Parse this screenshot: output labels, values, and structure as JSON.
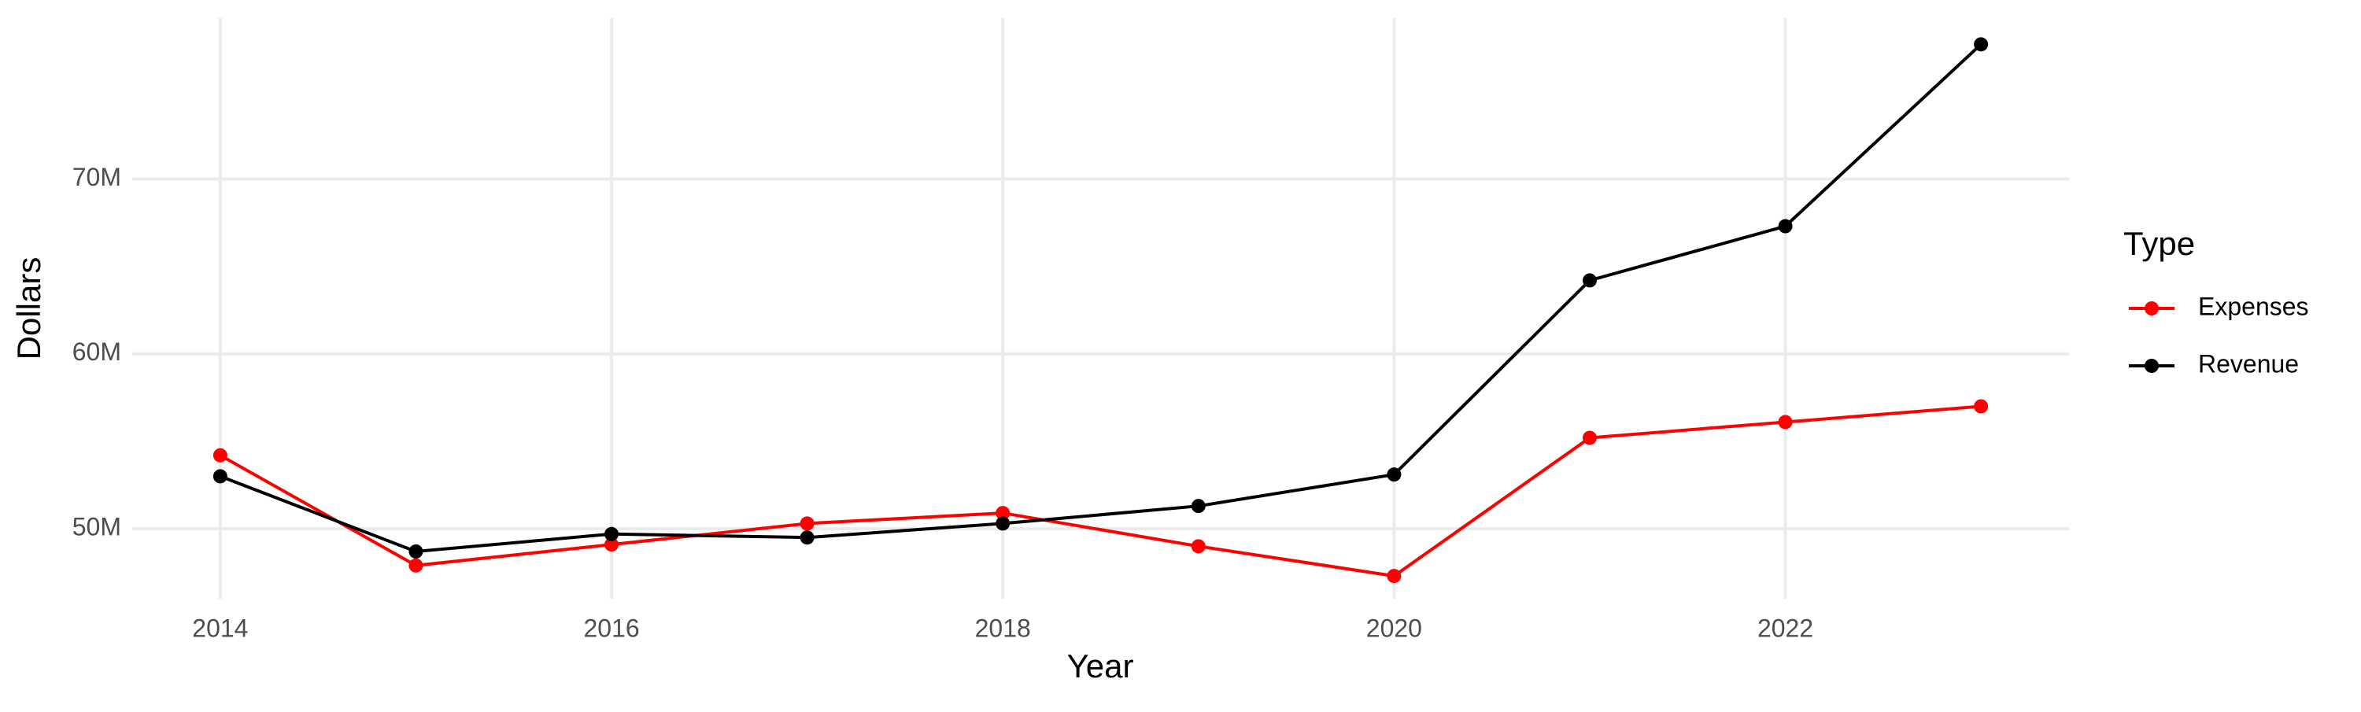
{
  "chart_data": {
    "type": "line",
    "x_label": "Year",
    "y_label": "Dollars",
    "legend_title": "Type",
    "x": [
      2014,
      2015,
      2016,
      2017,
      2018,
      2019,
      2020,
      2021,
      2022,
      2023
    ],
    "series": [
      {
        "name": "Expenses",
        "color": "#ff0000",
        "values": [
          54200000,
          47900000,
          49100000,
          50300000,
          50900000,
          49000000,
          47300000,
          55200000,
          56100000,
          57000000
        ]
      },
      {
        "name": "Revenue",
        "color": "#000000",
        "values": [
          53000000,
          48700000,
          49700000,
          49500000,
          50300000,
          51300000,
          53100000,
          64200000,
          67300000,
          77700000
        ]
      }
    ],
    "xlim": [
      2013.55,
      2023.45
    ],
    "xticks": [
      2014,
      2016,
      2018,
      2020,
      2022
    ],
    "ylim": [
      46000000,
      79200000
    ],
    "yticks": [
      {
        "value": 50000000,
        "label": "50M"
      },
      {
        "value": 60000000,
        "label": "60M"
      },
      {
        "value": 70000000,
        "label": "70M"
      }
    ],
    "grid": true,
    "legend": "right"
  }
}
